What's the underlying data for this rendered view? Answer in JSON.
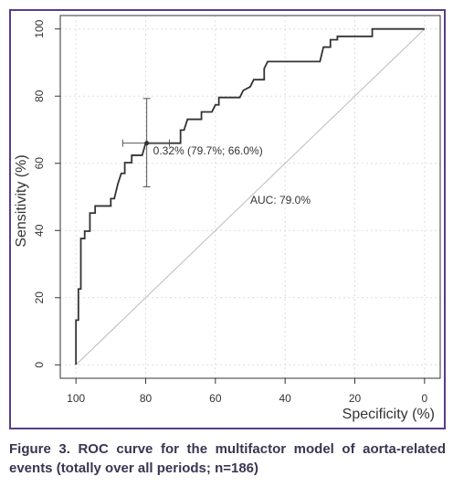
{
  "chart_data": {
    "type": "roc",
    "x_label": "Specificity (%)",
    "y_label": "Sensitivity (%)",
    "color": "#333333",
    "xlim": [
      104.5,
      -4.5
    ],
    "ylim": [
      -4,
      104
    ],
    "xticks": [
      100,
      80,
      60,
      40,
      20,
      0
    ],
    "yticks": [
      0,
      20,
      40,
      60,
      80,
      100
    ],
    "grid": true,
    "x": [
      100,
      100,
      99.3,
      99.3,
      98.6,
      98.6,
      97.5,
      97.5,
      96,
      96,
      94.5,
      94.5,
      90,
      90,
      89,
      88,
      87,
      86,
      86,
      84,
      84,
      81,
      80,
      70,
      70,
      69,
      68,
      64,
      64,
      61,
      60,
      59,
      59,
      53,
      52,
      50,
      49,
      46,
      46,
      45,
      30,
      29,
      27,
      27,
      25,
      25,
      15,
      15,
      0
    ],
    "values": [
      0,
      13.3,
      13.3,
      22.6,
      22.6,
      37.6,
      37.6,
      39.8,
      39.8,
      45.2,
      45.2,
      47.3,
      47.3,
      49.5,
      49.5,
      53.8,
      57,
      57,
      60.2,
      60.2,
      62.4,
      62.4,
      66,
      66,
      69.9,
      69.9,
      73.1,
      73.1,
      75.3,
      75.3,
      77.4,
      77.4,
      79.6,
      79.6,
      81.7,
      82.8,
      84.9,
      84.9,
      88.2,
      90.3,
      90.3,
      94.6,
      94.6,
      96.8,
      96.8,
      97.8,
      97.8,
      100,
      100
    ],
    "diagonal": {
      "x": [
        100,
        0
      ],
      "y": [
        0,
        100
      ]
    },
    "threshold_point": {
      "x": 79.7,
      "y": 66.0,
      "ci_x": [
        86.6,
        73.2
      ],
      "ci_y": [
        53.0,
        79.3
      ],
      "label": "0.32% (79.7%; 66.0%)"
    },
    "auc_label": "AUC: 79.0%"
  },
  "caption": "Figure 3. ROC curve for the multifactor model of aorta-related events (totally over all periods; n=186)"
}
